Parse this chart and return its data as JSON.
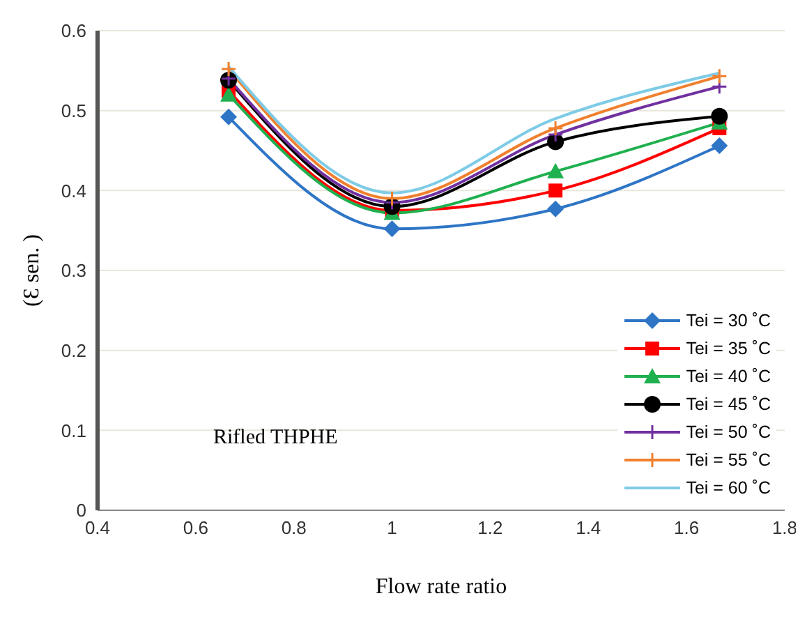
{
  "chart_data": {
    "type": "line",
    "xlabel": "Flow rate ratio",
    "ylabel": "(Ɛ sen. )",
    "annotations": [
      "Rifled THPHE"
    ],
    "x": [
      0.667,
      1.0,
      1.333,
      1.667
    ],
    "xlim": [
      0.4,
      1.8
    ],
    "xticks": [
      0.4,
      0.6,
      0.8,
      1,
      1.2,
      1.4,
      1.6,
      1.8
    ],
    "ylim": [
      0,
      0.6
    ],
    "yticks": [
      0,
      0.1,
      0.2,
      0.3,
      0.4,
      0.5,
      0.6
    ],
    "grid": "y",
    "legend": "bottom right",
    "series": [
      {
        "name": "Tei = 30 ˚C",
        "color": "#2e75c6",
        "marker": "diamond",
        "values": [
          0.492,
          0.352,
          0.377,
          0.456
        ]
      },
      {
        "name": "Tei = 35 ˚C",
        "color": "#ff0000",
        "marker": "square",
        "values": [
          0.525,
          0.375,
          0.4,
          0.478
        ]
      },
      {
        "name": "Tei = 40 ˚C",
        "color": "#1fb04f",
        "marker": "triangle",
        "values": [
          0.52,
          0.372,
          0.424,
          0.485
        ]
      },
      {
        "name": "Tei = 45 ˚C",
        "color": "#000000",
        "marker": "circle",
        "values": [
          0.538,
          0.38,
          0.461,
          0.493
        ]
      },
      {
        "name": "Tei = 50 ˚C",
        "color": "#7030a0",
        "marker": "cross",
        "values": [
          0.54,
          0.385,
          0.47,
          0.53
        ]
      },
      {
        "name": "Tei = 55 ˚C",
        "color": "#f0802e",
        "marker": "cross",
        "values": [
          0.552,
          0.39,
          0.478,
          0.543
        ]
      },
      {
        "name": "Tei = 60 ˚C",
        "color": "#7ecbe6",
        "marker": "none",
        "values": [
          0.555,
          0.397,
          0.49,
          0.547
        ]
      }
    ]
  }
}
